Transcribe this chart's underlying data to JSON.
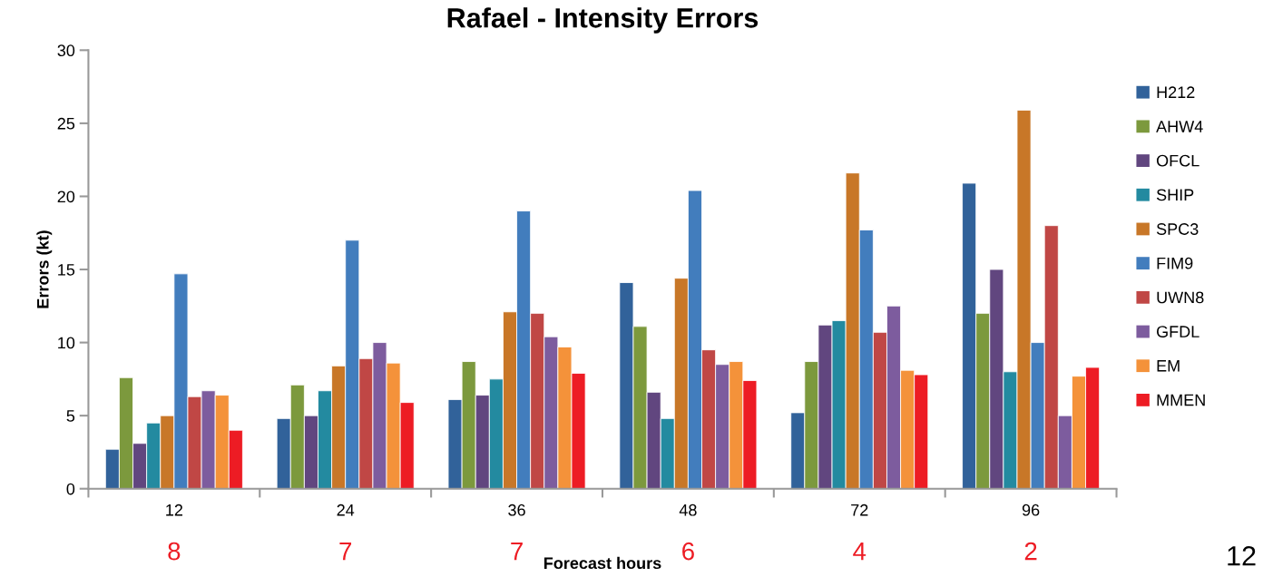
{
  "chart_data": {
    "type": "bar",
    "title": "Rafael - Intensity Errors",
    "xlabel": "Forecast hours",
    "ylabel": "Errors (kt)",
    "categories": [
      "12",
      "24",
      "36",
      "48",
      "72",
      "96"
    ],
    "series": [
      {
        "name": "H212",
        "color": "#31629a",
        "values": [
          2.7,
          4.8,
          6.1,
          14.1,
          5.2,
          20.9
        ]
      },
      {
        "name": "AHW4",
        "color": "#7c993d",
        "values": [
          7.6,
          7.1,
          8.7,
          11.1,
          8.7,
          12.0
        ]
      },
      {
        "name": "OFCL",
        "color": "#61467f",
        "values": [
          3.1,
          5.0,
          6.4,
          6.6,
          11.2,
          15.0
        ]
      },
      {
        "name": "SHIP",
        "color": "#238aa0",
        "values": [
          4.5,
          6.7,
          7.5,
          4.8,
          11.5,
          8.0
        ]
      },
      {
        "name": "SPC3",
        "color": "#c87728",
        "values": [
          5.0,
          8.4,
          12.1,
          14.4,
          21.6,
          25.9
        ]
      },
      {
        "name": "FIM9",
        "color": "#427dbd",
        "values": [
          14.7,
          17.0,
          19.0,
          20.4,
          17.7,
          10.0
        ]
      },
      {
        "name": "UWN8",
        "color": "#c04745",
        "values": [
          6.3,
          8.9,
          12.0,
          9.5,
          10.7,
          18.0
        ]
      },
      {
        "name": "GFDL",
        "color": "#7d5c9e",
        "values": [
          6.7,
          10.0,
          10.4,
          8.5,
          12.5,
          5.0
        ]
      },
      {
        "name": "EM",
        "color": "#f4923a",
        "values": [
          6.4,
          8.6,
          9.7,
          8.7,
          8.1,
          7.7
        ]
      },
      {
        "name": "MMEN",
        "color": "#ed1c24",
        "values": [
          4.0,
          5.9,
          7.9,
          7.4,
          7.8,
          8.3
        ]
      }
    ],
    "ylim": [
      0,
      30
    ],
    "yticks": [
      0,
      5,
      10,
      15,
      20,
      25,
      30
    ],
    "grid": false,
    "legend": "right",
    "annotations": [
      "8",
      "7",
      "7",
      "6",
      "4",
      "2",
      "12"
    ]
  }
}
